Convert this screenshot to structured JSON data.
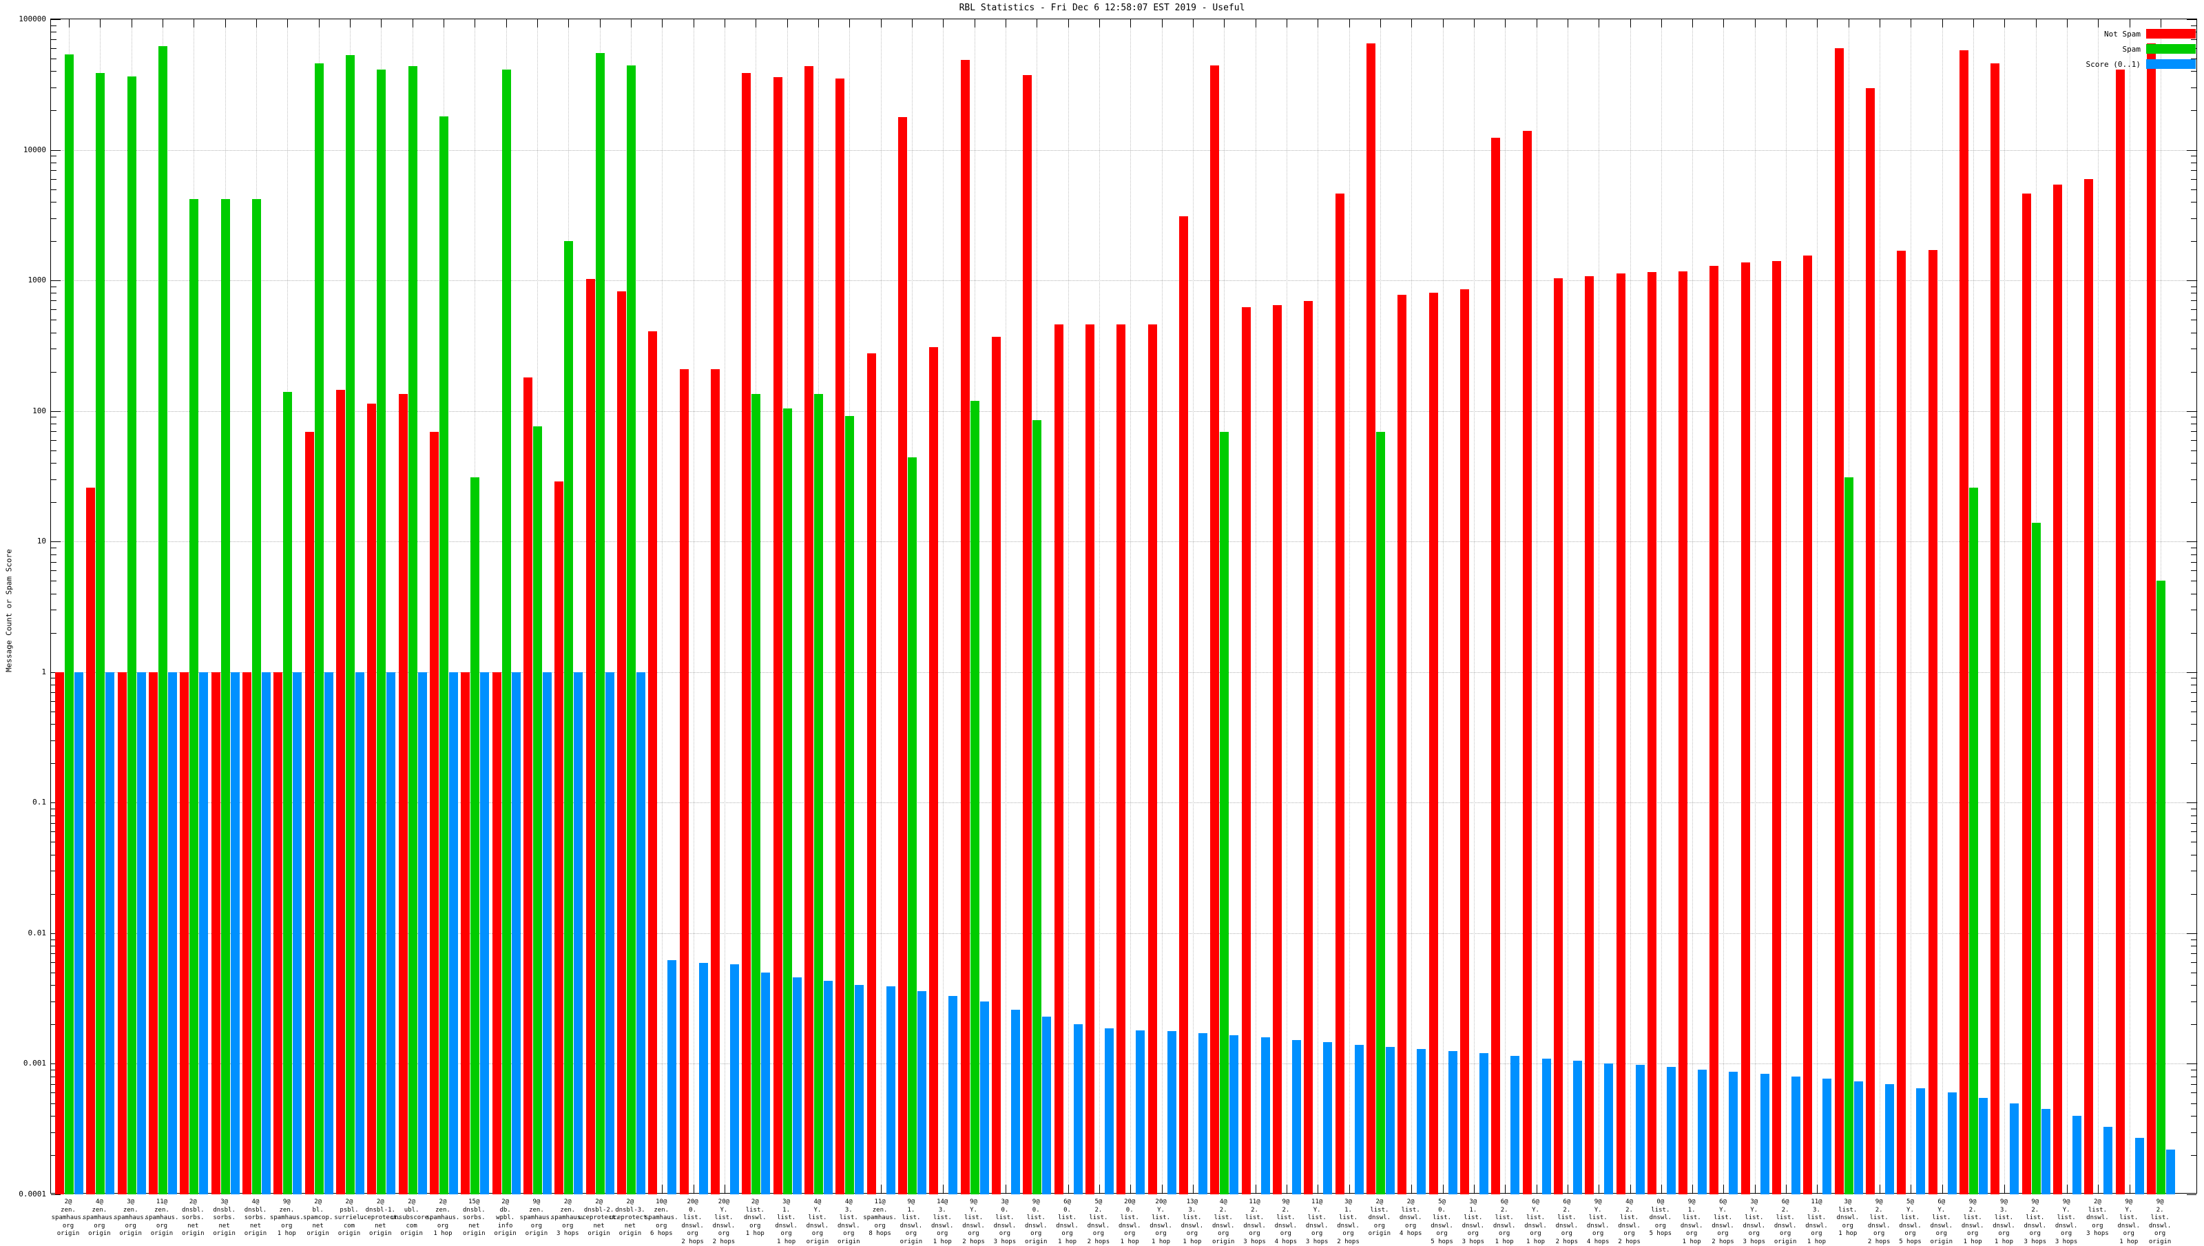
{
  "title": "RBL Statistics - Fri Dec  6 12:58:07 EST 2019 - Useful",
  "y_axis": {
    "label": "Message Count or Spam Score",
    "ticks": [
      "100000",
      "10000",
      "1000",
      "100",
      "10",
      "1",
      "0.1",
      "0.01",
      "0.001",
      "0.0001"
    ]
  },
  "legend": [
    {
      "label": "Not Spam",
      "key": "not_spam",
      "color": "#ff0000"
    },
    {
      "label": "Spam",
      "key": "spam",
      "color": "#00cc00"
    },
    {
      "label": "Score (0..1)",
      "key": "score",
      "color": "#0090ff"
    }
  ],
  "chart_data": {
    "type": "bar",
    "log_scale": true,
    "ylim": [
      0.0001,
      100000
    ],
    "grid": true,
    "legend_position": "top-right",
    "series_names": [
      "Not Spam",
      "Spam",
      "Score (0..1)"
    ],
    "groups": [
      {
        "label": [
          "2@",
          "zen.",
          "spamhaus.",
          "org",
          "origin"
        ],
        "not_spam": 1,
        "spam": 54000,
        "score": 1.0
      },
      {
        "label": [
          "4@",
          "zen.",
          "spamhaus.",
          "org",
          "origin"
        ],
        "not_spam": 26,
        "spam": 39000,
        "score": 1.0
      },
      {
        "label": [
          "3@",
          "zen.",
          "spamhaus.",
          "org",
          "origin"
        ],
        "not_spam": 1,
        "spam": 36500,
        "score": 1.0
      },
      {
        "label": [
          "11@",
          "zen.",
          "spamhaus.",
          "org",
          "origin"
        ],
        "not_spam": 1,
        "spam": 62000,
        "score": 1.0
      },
      {
        "label": [
          "2@",
          "dnsbl.",
          "sorbs.",
          "net",
          "origin"
        ],
        "not_spam": 1,
        "spam": 4200,
        "score": 1.0
      },
      {
        "label": [
          "3@",
          "dnsbl.",
          "sorbs.",
          "net",
          "origin"
        ],
        "not_spam": 1,
        "spam": 4200,
        "score": 1.0
      },
      {
        "label": [
          "4@",
          "dnsbl.",
          "sorbs.",
          "net",
          "origin"
        ],
        "not_spam": 1,
        "spam": 4200,
        "score": 1.0
      },
      {
        "label": [
          "9@",
          "zen.",
          "spamhaus.",
          "org",
          "1 hop"
        ],
        "not_spam": 1,
        "spam": 140,
        "score": 1.0
      },
      {
        "label": [
          "2@",
          "bl.",
          "spamcop.",
          "net",
          "origin"
        ],
        "not_spam": 69,
        "spam": 46000,
        "score": 1.0
      },
      {
        "label": [
          "2@",
          "psbl.",
          "surriel.",
          "com",
          "origin"
        ],
        "not_spam": 145,
        "spam": 53000,
        "score": 1.0
      },
      {
        "label": [
          "2@",
          "dnsbl-1.",
          "uceprotect.",
          "net",
          "origin"
        ],
        "not_spam": 114,
        "spam": 41000,
        "score": 1.0
      },
      {
        "label": [
          "2@",
          "ubl.",
          "unsubscore.",
          "com",
          "origin"
        ],
        "not_spam": 135,
        "spam": 44000,
        "score": 1.0
      },
      {
        "label": [
          "2@",
          "zen.",
          "spamhaus.",
          "org",
          "1 hop"
        ],
        "not_spam": 69,
        "spam": 18000,
        "score": 1.0
      },
      {
        "label": [
          "15@",
          "dnsbl.",
          "sorbs.",
          "net",
          "origin"
        ],
        "not_spam": 1,
        "spam": 31,
        "score": 1.0
      },
      {
        "label": [
          "2@",
          "db.",
          "wpbl.",
          "info",
          "origin"
        ],
        "not_spam": 1,
        "spam": 41000,
        "score": 1.0
      },
      {
        "label": [
          "9@",
          "zen.",
          "spamhaus.",
          "org",
          "origin"
        ],
        "not_spam": 180,
        "spam": 76,
        "score": 1.0
      },
      {
        "label": [
          "2@",
          "zen.",
          "spamhaus.",
          "org",
          "3 hops"
        ],
        "not_spam": 29,
        "spam": 2000,
        "score": 1.0
      },
      {
        "label": [
          "2@",
          "dnsbl-2.",
          "uceprotect.",
          "net",
          "origin"
        ],
        "not_spam": 1020,
        "spam": 55000,
        "score": 1.0
      },
      {
        "label": [
          "2@",
          "dnsbl-3.",
          "uceprotect.",
          "net",
          "origin"
        ],
        "not_spam": 820,
        "spam": 44500,
        "score": 1.0
      },
      {
        "label": [
          "10@",
          "zen.",
          "spamhaus.",
          "org",
          "6 hops"
        ],
        "not_spam": 410,
        "spam": null,
        "score": 0.0062
      },
      {
        "label": [
          "20@",
          "0.",
          "list.",
          "dnswl.",
          "org",
          "2 hops"
        ],
        "not_spam": 210,
        "spam": null,
        "score": 0.0059
      },
      {
        "label": [
          "20@",
          "Y.",
          "list.",
          "dnswl.",
          "org",
          "2 hops"
        ],
        "not_spam": 210,
        "spam": null,
        "score": 0.0058
      },
      {
        "label": [
          "2@",
          "list.",
          "dnswl.",
          "org",
          "1 hop"
        ],
        "not_spam": 39000,
        "spam": 135,
        "score": 0.005
      },
      {
        "label": [
          "3@",
          "1.",
          "list.",
          "dnswl.",
          "org",
          "1 hop"
        ],
        "not_spam": 36000,
        "spam": 105,
        "score": 0.0046
      },
      {
        "label": [
          "4@",
          "Y.",
          "list.",
          "dnswl.",
          "org",
          "origin"
        ],
        "not_spam": 44000,
        "spam": 135,
        "score": 0.0043
      },
      {
        "label": [
          "4@",
          "3.",
          "list.",
          "dnswl.",
          "org",
          "origin"
        ],
        "not_spam": 35000,
        "spam": 91,
        "score": 0.004
      },
      {
        "label": [
          "11@",
          "zen.",
          "spamhaus.",
          "org",
          "8 hops"
        ],
        "not_spam": 275,
        "spam": null,
        "score": 0.0039
      },
      {
        "label": [
          "9@",
          "1.",
          "list.",
          "dnswl.",
          "org",
          "origin"
        ],
        "not_spam": 17800,
        "spam": 44,
        "score": 0.0036
      },
      {
        "label": [
          "14@",
          "3.",
          "list.",
          "dnswl.",
          "org",
          "1 hop"
        ],
        "not_spam": 310,
        "spam": null,
        "score": 0.0033
      },
      {
        "label": [
          "9@",
          "Y.",
          "list.",
          "dnswl.",
          "org",
          "2 hops"
        ],
        "not_spam": 49000,
        "spam": 120,
        "score": 0.003
      },
      {
        "label": [
          "3@",
          "0.",
          "list.",
          "dnswl.",
          "org",
          "3 hops"
        ],
        "not_spam": 370,
        "spam": null,
        "score": 0.0026
      },
      {
        "label": [
          "9@",
          "0.",
          "list.",
          "dnswl.",
          "org",
          "origin"
        ],
        "not_spam": 37500,
        "spam": 85,
        "score": 0.0023
      },
      {
        "label": [
          "6@",
          "0.",
          "list.",
          "dnswl.",
          "org",
          "1 hop"
        ],
        "not_spam": 460,
        "spam": null,
        "score": 0.002
      },
      {
        "label": [
          "5@",
          "2.",
          "list.",
          "dnswl.",
          "org",
          "2 hops"
        ],
        "not_spam": 460,
        "spam": null,
        "score": 0.00187
      },
      {
        "label": [
          "20@",
          "0.",
          "list.",
          "dnswl.",
          "org",
          "1 hop"
        ],
        "not_spam": 460,
        "spam": null,
        "score": 0.00181
      },
      {
        "label": [
          "20@",
          "Y.",
          "list.",
          "dnswl.",
          "org",
          "1 hop"
        ],
        "not_spam": 460,
        "spam": null,
        "score": 0.00178
      },
      {
        "label": [
          "13@",
          "3.",
          "list.",
          "dnswl.",
          "org",
          "1 hop"
        ],
        "not_spam": 3100,
        "spam": null,
        "score": 0.00172
      },
      {
        "label": [
          "4@",
          "2.",
          "list.",
          "dnswl.",
          "org",
          "origin"
        ],
        "not_spam": 44500,
        "spam": 69,
        "score": 0.00165
      },
      {
        "label": [
          "11@",
          "2.",
          "list.",
          "dnswl.",
          "org",
          "3 hops"
        ],
        "not_spam": 620,
        "spam": null,
        "score": 0.0016
      },
      {
        "label": [
          "9@",
          "2.",
          "list.",
          "dnswl.",
          "org",
          "4 hops"
        ],
        "not_spam": 645,
        "spam": null,
        "score": 0.00152
      },
      {
        "label": [
          "11@",
          "Y.",
          "list.",
          "dnswl.",
          "org",
          "3 hops"
        ],
        "not_spam": 695,
        "spam": null,
        "score": 0.00147
      },
      {
        "label": [
          "3@",
          "1.",
          "list.",
          "dnswl.",
          "org",
          "2 hops"
        ],
        "not_spam": 4600,
        "spam": null,
        "score": 0.0014
      },
      {
        "label": [
          "2@",
          "list.",
          "dnswl.",
          "org",
          "origin"
        ],
        "not_spam": 65000,
        "spam": 69,
        "score": 0.00135
      },
      {
        "label": [
          "2@",
          "list.",
          "dnswl.",
          "org",
          "4 hops"
        ],
        "not_spam": 775,
        "spam": null,
        "score": 0.0013
      },
      {
        "label": [
          "5@",
          "0.",
          "list.",
          "dnswl.",
          "org",
          "5 hops"
        ],
        "not_spam": 805,
        "spam": null,
        "score": 0.00125
      },
      {
        "label": [
          "3@",
          "1.",
          "list.",
          "dnswl.",
          "org",
          "3 hops"
        ],
        "not_spam": 855,
        "spam": null,
        "score": 0.0012
      },
      {
        "label": [
          "6@",
          "2.",
          "list.",
          "dnswl.",
          "org",
          "1 hop"
        ],
        "not_spam": 12400,
        "spam": null,
        "score": 0.00115
      },
      {
        "label": [
          "6@",
          "Y.",
          "list.",
          "dnswl.",
          "org",
          "1 hop"
        ],
        "not_spam": 14000,
        "spam": null,
        "score": 0.0011
      },
      {
        "label": [
          "6@",
          "2.",
          "list.",
          "dnswl.",
          "org",
          "2 hops"
        ],
        "not_spam": 1040,
        "spam": null,
        "score": 0.00105
      },
      {
        "label": [
          "9@",
          "Y.",
          "list.",
          "dnswl.",
          "org",
          "4 hops"
        ],
        "not_spam": 1080,
        "spam": null,
        "score": 0.001
      },
      {
        "label": [
          "4@",
          "2.",
          "list.",
          "dnswl.",
          "org",
          "2 hops"
        ],
        "not_spam": 1130,
        "spam": null,
        "score": 0.00098
      },
      {
        "label": [
          "0@",
          "list.",
          "dnswl.",
          "org",
          "5 hops"
        ],
        "not_spam": 1160,
        "spam": null,
        "score": 0.00095
      },
      {
        "label": [
          "9@",
          "1.",
          "list.",
          "dnswl.",
          "org",
          "1 hop"
        ],
        "not_spam": 1170,
        "spam": null,
        "score": 0.0009
      },
      {
        "label": [
          "6@",
          "Y.",
          "list.",
          "dnswl.",
          "org",
          "2 hops"
        ],
        "not_spam": 1290,
        "spam": null,
        "score": 0.00087
      },
      {
        "label": [
          "3@",
          "Y.",
          "list.",
          "dnswl.",
          "org",
          "3 hops"
        ],
        "not_spam": 1370,
        "spam": null,
        "score": 0.00084
      },
      {
        "label": [
          "6@",
          "2.",
          "list.",
          "dnswl.",
          "org",
          "origin"
        ],
        "not_spam": 1400,
        "spam": null,
        "score": 0.0008
      },
      {
        "label": [
          "11@",
          "3.",
          "list.",
          "dnswl.",
          "org",
          "1 hop"
        ],
        "not_spam": 1550,
        "spam": null,
        "score": 0.00077
      },
      {
        "label": [
          "3@",
          "list.",
          "dnswl.",
          "org",
          "1 hop"
        ],
        "not_spam": 60000,
        "spam": 31,
        "score": 0.00073
      },
      {
        "label": [
          "9@",
          "2.",
          "list.",
          "dnswl.",
          "org",
          "2 hops"
        ],
        "not_spam": 29500,
        "spam": null,
        "score": 0.0007
      },
      {
        "label": [
          "5@",
          "Y.",
          "list.",
          "dnswl.",
          "org",
          "5 hops"
        ],
        "not_spam": 1690,
        "spam": null,
        "score": 0.00065
      },
      {
        "label": [
          "6@",
          "Y.",
          "list.",
          "dnswl.",
          "org",
          "origin"
        ],
        "not_spam": 1700,
        "spam": null,
        "score": 0.0006
      },
      {
        "label": [
          "9@",
          "2.",
          "list.",
          "dnswl.",
          "org",
          "1 hop"
        ],
        "not_spam": 58000,
        "spam": 26,
        "score": 0.00055
      },
      {
        "label": [
          "9@",
          "3.",
          "list.",
          "dnswl.",
          "org",
          "1 hop"
        ],
        "not_spam": 46000,
        "spam": null,
        "score": 0.0005
      },
      {
        "label": [
          "9@",
          "2.",
          "list.",
          "dnswl.",
          "org",
          "3 hops"
        ],
        "not_spam": 4650,
        "spam": 14,
        "score": 0.00045
      },
      {
        "label": [
          "9@",
          "Y.",
          "list.",
          "dnswl.",
          "org",
          "3 hops"
        ],
        "not_spam": 5450,
        "spam": null,
        "score": 0.0004
      },
      {
        "label": [
          "2@",
          "list.",
          "dnswl.",
          "org",
          "3 hops"
        ],
        "not_spam": 5950,
        "spam": null,
        "score": 0.00033
      },
      {
        "label": [
          "9@",
          "Y.",
          "list.",
          "dnswl.",
          "org",
          "1 hop"
        ],
        "not_spam": 41000,
        "spam": null,
        "score": 0.00027
      },
      {
        "label": [
          "9@",
          "2.",
          "list.",
          "dnswl.",
          "org",
          "origin"
        ],
        "not_spam": 65000,
        "spam": 5,
        "score": 0.00022
      }
    ]
  }
}
